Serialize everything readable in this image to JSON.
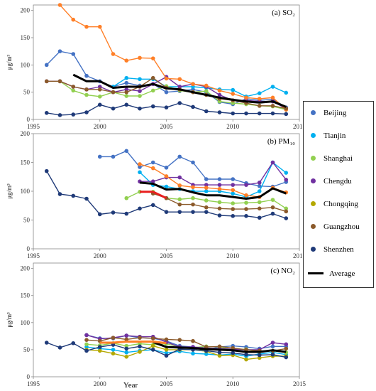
{
  "figure": {
    "x_axis_label": "Year",
    "y_unit_label": "μg/m³"
  },
  "legend": [
    {
      "name": "Beijing",
      "color": "#4472C4"
    },
    {
      "name": "Tianjin",
      "color": "#00B0F0"
    },
    {
      "name": "Shanghai",
      "color": "#92D050"
    },
    {
      "name": "Chengdu",
      "color": "#7030A0"
    },
    {
      "name": "Chongqing",
      "color": "#B4A800"
    },
    {
      "name": "Guangzhou",
      "color": "#8B5A2B"
    },
    {
      "name": "Shenzhen",
      "color": "#1F3A78"
    },
    {
      "name": "Average",
      "color": "#000000"
    }
  ],
  "chart_data": [
    {
      "type": "line",
      "panel_label": "(a) SO₂",
      "xlim": [
        1995,
        2015
      ],
      "ylim": [
        0,
        210
      ],
      "x_ticks": [
        "1995",
        "2000",
        "2005",
        "2010",
        "2015"
      ],
      "y_ticks": [
        "0",
        "50",
        "100",
        "150",
        "200"
      ],
      "ylabel": "μg/m³",
      "series": [
        {
          "name": "Beijing",
          "color": "#4472C4",
          "x": [
            1996,
            1997,
            1998,
            1999,
            2000,
            2001,
            2002,
            2003,
            2004,
            2005,
            2006,
            2007,
            2008,
            2009,
            2010,
            2011,
            2012,
            2013,
            2014
          ],
          "y": [
            100,
            125,
            120,
            80,
            70,
            60,
            67,
            62,
            65,
            50,
            52,
            55,
            50,
            32,
            28,
            38,
            35,
            37,
            22
          ]
        },
        {
          "name": "Tianjin",
          "color": "#00B0F0",
          "x": [
            2001,
            2002,
            2003,
            2004,
            2005,
            2006,
            2007,
            2008,
            2009,
            2010,
            2011,
            2012,
            2013,
            2014
          ],
          "y": [
            60,
            76,
            74,
            74,
            60,
            60,
            60,
            58,
            55,
            54,
            42,
            48,
            60,
            49
          ]
        },
        {
          "name": "Shanghai",
          "color": "#92D050",
          "x": [
            1997,
            1998,
            1999,
            2000,
            2001,
            2002,
            2003,
            2004,
            2005,
            2006,
            2007,
            2008,
            2009,
            2010,
            2011,
            2012,
            2013,
            2014
          ],
          "y": [
            70,
            53,
            45,
            42,
            50,
            43,
            43,
            53,
            61,
            53,
            50,
            52,
            33,
            30,
            28,
            25,
            24,
            18
          ]
        },
        {
          "name": "Chengdu",
          "color": "#7030A0",
          "x": [
            1996,
            1997,
            1998,
            1999,
            2000,
            2001,
            2002,
            2003,
            2004,
            2005,
            2006,
            2007,
            2008,
            2009,
            2010,
            2011,
            2012,
            2013,
            2014
          ],
          "y": [
            70,
            70,
            60,
            55,
            60,
            50,
            55,
            52,
            65,
            78,
            60,
            65,
            60,
            45,
            35,
            35,
            33,
            33,
            20
          ]
        },
        {
          "name": "Chongqing",
          "color": "#FF7F27",
          "x": [
            1997,
            1998,
            1999,
            2000,
            2001,
            2002,
            2003,
            2004,
            2005,
            2006,
            2007,
            2008,
            2009,
            2010,
            2011,
            2012,
            2013,
            2014
          ],
          "y": [
            210,
            183,
            170,
            170,
            120,
            108,
            113,
            112,
            75,
            74,
            65,
            62,
            53,
            47,
            40,
            38,
            40,
            18
          ]
        },
        {
          "name": "Guangzhou",
          "color": "#8B5A2B",
          "x": [
            1996,
            1997,
            1998,
            1999,
            2000,
            2001,
            2002,
            2003,
            2004,
            2005,
            2006,
            2007,
            2008,
            2009,
            2010,
            2011,
            2012,
            2013,
            2014
          ],
          "y": [
            70,
            70,
            60,
            55,
            55,
            50,
            50,
            60,
            76,
            58,
            55,
            50,
            45,
            38,
            35,
            30,
            25,
            25,
            20
          ]
        },
        {
          "name": "Shenzhen",
          "color": "#1F3A78",
          "x": [
            1996,
            1997,
            1998,
            1999,
            2000,
            2001,
            2002,
            2003,
            2004,
            2005,
            2006,
            2007,
            2008,
            2009,
            2010,
            2011,
            2012,
            2013,
            2014
          ],
          "y": [
            12,
            8,
            9,
            13,
            27,
            20,
            27,
            20,
            24,
            22,
            30,
            23,
            15,
            13,
            11,
            11,
            11,
            11,
            10
          ]
        },
        {
          "name": "Average",
          "color": "#000000",
          "x": [
            1998,
            1999,
            2000,
            2001,
            2002,
            2003,
            2004,
            2005,
            2006,
            2007,
            2008,
            2009,
            2010,
            2011,
            2012,
            2013,
            2014
          ],
          "y": [
            82,
            70,
            70,
            58,
            60,
            60,
            65,
            57,
            55,
            50,
            45,
            40,
            36,
            33,
            31,
            33,
            23
          ]
        }
      ]
    },
    {
      "type": "line",
      "panel_label": "(b) PM₁₀",
      "xlim": [
        1995,
        2015
      ],
      "ylim": [
        0,
        200
      ],
      "x_ticks": [
        "1995",
        "2000",
        "2005",
        "2010",
        "2015"
      ],
      "y_ticks": [
        "0",
        "50",
        "100",
        "150",
        "200"
      ],
      "ylabel": "μg/m³",
      "series": [
        {
          "name": "Beijing",
          "color": "#4472C4",
          "x": [
            2000,
            2001,
            2002,
            2003,
            2004,
            2005,
            2006,
            2007,
            2008,
            2009,
            2010,
            2011,
            2012,
            2013,
            2014
          ],
          "y": [
            160,
            160,
            170,
            142,
            150,
            141,
            160,
            150,
            121,
            121,
            121,
            114,
            109,
            108,
            116
          ]
        },
        {
          "name": "Tianjin",
          "color": "#00B0F0",
          "x": [
            2003,
            2004,
            2005,
            2006,
            2007,
            2008,
            2009,
            2010,
            2011,
            2012,
            2013,
            2014
          ],
          "y": [
            133,
            111,
            108,
            104,
            100,
            100,
            100,
            96,
            90,
            100,
            150,
            132
          ]
        },
        {
          "name": "Shanghai",
          "color": "#92D050",
          "x": [
            2002,
            2003,
            2004,
            2005,
            2006,
            2007,
            2008,
            2009,
            2010,
            2011,
            2012,
            2013,
            2014
          ],
          "y": [
            88,
            99,
            99,
            88,
            86,
            88,
            84,
            81,
            79,
            80,
            81,
            85,
            70
          ]
        },
        {
          "name": "Chengdu",
          "color": "#7030A0",
          "x": [
            2003,
            2004,
            2005,
            2006,
            2007,
            2008,
            2009,
            2010,
            2011,
            2012,
            2013,
            2014
          ],
          "y": [
            117,
            117,
            124,
            124,
            111,
            111,
            111,
            111,
            111,
            115,
            150,
            120
          ]
        },
        {
          "name": "Chongqing",
          "color": "#FF7F27",
          "x": [
            2003,
            2004,
            2005,
            2006,
            2007,
            2008,
            2009,
            2010,
            2011,
            2012,
            2013,
            2014
          ],
          "y": [
            147,
            140,
            126,
            110,
            107,
            106,
            104,
            102,
            93,
            90,
            106,
            98
          ]
        },
        {
          "name": "Guangzhou",
          "color": "#8B5A2B",
          "x": [
            2004,
            2005,
            2006,
            2007,
            2008,
            2009,
            2010,
            2011,
            2012,
            2013,
            2014
          ],
          "y": [
            96,
            88,
            77,
            77,
            72,
            70,
            69,
            69,
            70,
            72,
            65
          ]
        },
        {
          "name": "Shenzhen",
          "color": "#1F3A78",
          "x": [
            1996,
            1997,
            1998,
            1999,
            2000,
            2001,
            2002,
            2003,
            2004,
            2005,
            2006,
            2007,
            2008,
            2009,
            2010,
            2011,
            2012,
            2013,
            2014
          ],
          "y": [
            135,
            95,
            92,
            87,
            60,
            63,
            61,
            70,
            76,
            64,
            64,
            64,
            64,
            58,
            57,
            57,
            54,
            61,
            53
          ]
        },
        {
          "name": "Average",
          "color": "#000000",
          "x": [
            2003,
            2004,
            2005,
            2006,
            2007,
            2008,
            2009,
            2010,
            2011,
            2012,
            2013,
            2014
          ],
          "y": [
            115,
            113,
            103,
            104,
            98,
            93,
            93,
            90,
            87,
            90,
            105,
            96
          ]
        },
        {
          "name": "Average (red)",
          "color": "#E81E1E",
          "x": [
            2003,
            2004,
            2005
          ],
          "y": [
            99,
            99,
            88
          ]
        }
      ]
    },
    {
      "type": "line",
      "panel_label": "(c) NO₂",
      "xlim": [
        1995,
        2015
      ],
      "ylim": [
        0,
        210
      ],
      "x_ticks": [
        "1995",
        "2000",
        "2005",
        "2010",
        "2015"
      ],
      "y_ticks": [
        "0",
        "50",
        "100",
        "150",
        "200"
      ],
      "ylabel": "μg/m³",
      "series": [
        {
          "name": "Beijing",
          "color": "#4472C4",
          "x": [
            1999,
            2000,
            2001,
            2002,
            2003,
            2004,
            2005,
            2006,
            2007,
            2008,
            2009,
            2010,
            2011,
            2012,
            2013,
            2014
          ],
          "y": [
            77,
            71,
            71,
            76,
            72,
            71,
            66,
            57,
            55,
            50,
            55,
            57,
            55,
            52,
            56,
            56
          ]
        },
        {
          "name": "Tianjin",
          "color": "#00B0F0",
          "x": [
            1999,
            2000,
            2001,
            2002,
            2003,
            2004,
            2005,
            2006,
            2007,
            2008,
            2009,
            2010,
            2011,
            2012,
            2013,
            2014
          ],
          "y": [
            55,
            52,
            50,
            45,
            48,
            50,
            44,
            47,
            43,
            42,
            40,
            42,
            38,
            42,
            45,
            41
          ]
        },
        {
          "name": "Shanghai",
          "color": "#92D050",
          "x": [
            1999,
            2000,
            2001,
            2002,
            2003,
            2004,
            2005,
            2006,
            2007,
            2008,
            2009,
            2010,
            2011,
            2012,
            2013,
            2014
          ],
          "y": [
            60,
            58,
            62,
            57,
            61,
            59,
            61,
            55,
            54,
            56,
            55,
            50,
            51,
            46,
            48,
            45
          ]
        },
        {
          "name": "Chengdu",
          "color": "#7030A0",
          "x": [
            1999,
            2000,
            2001,
            2002,
            2003,
            2004,
            2005,
            2006,
            2007,
            2008,
            2009,
            2010,
            2011,
            2012,
            2013,
            2014
          ],
          "y": [
            77,
            70,
            72,
            76,
            74,
            74,
            64,
            55,
            55,
            53,
            52,
            51,
            50,
            50,
            63,
            60
          ]
        },
        {
          "name": "Chongqing",
          "color": "#B4A800",
          "x": [
            1999,
            2000,
            2001,
            2002,
            2003,
            2004,
            2005,
            2006,
            2007,
            2008,
            2009,
            2010,
            2011,
            2012,
            2013,
            2014
          ],
          "y": [
            50,
            48,
            43,
            37,
            46,
            57,
            50,
            50,
            50,
            47,
            39,
            40,
            32,
            35,
            38,
            38
          ]
        },
        {
          "name": "Guangzhou",
          "color": "#8B5A2B",
          "x": [
            1999,
            2000,
            2001,
            2002,
            2003,
            2004,
            2005,
            2006,
            2007,
            2008,
            2009,
            2010,
            2011,
            2012,
            2013,
            2014
          ],
          "y": [
            68,
            66,
            72,
            69,
            72,
            71,
            69,
            68,
            66,
            55,
            56,
            53,
            50,
            48,
            48,
            52
          ]
        },
        {
          "name": "Shenzhen",
          "color": "#1F3A78",
          "x": [
            1996,
            1997,
            1998,
            1999,
            2000,
            2001,
            2002,
            2003,
            2004,
            2005,
            2006,
            2007,
            2008,
            2009,
            2010,
            2011,
            2012,
            2013,
            2014
          ],
          "y": [
            63,
            54,
            62,
            48,
            55,
            59,
            52,
            56,
            50,
            39,
            51,
            50,
            48,
            45,
            44,
            41,
            40,
            41,
            36
          ]
        },
        {
          "name": "Average",
          "color": "#000000",
          "x": [
            2004,
            2005,
            2006,
            2007,
            2008,
            2009,
            2010,
            2011,
            2012,
            2013,
            2014
          ],
          "y": [
            64,
            55,
            54,
            53,
            51,
            50,
            49,
            46,
            46,
            49,
            46
          ]
        },
        {
          "name": "Average (orange)",
          "color": "#FF7F27",
          "x": [
            2000,
            2001,
            2002,
            2003,
            2004,
            2005
          ],
          "y": [
            63,
            63,
            65,
            65,
            65,
            62
          ]
        }
      ]
    }
  ]
}
